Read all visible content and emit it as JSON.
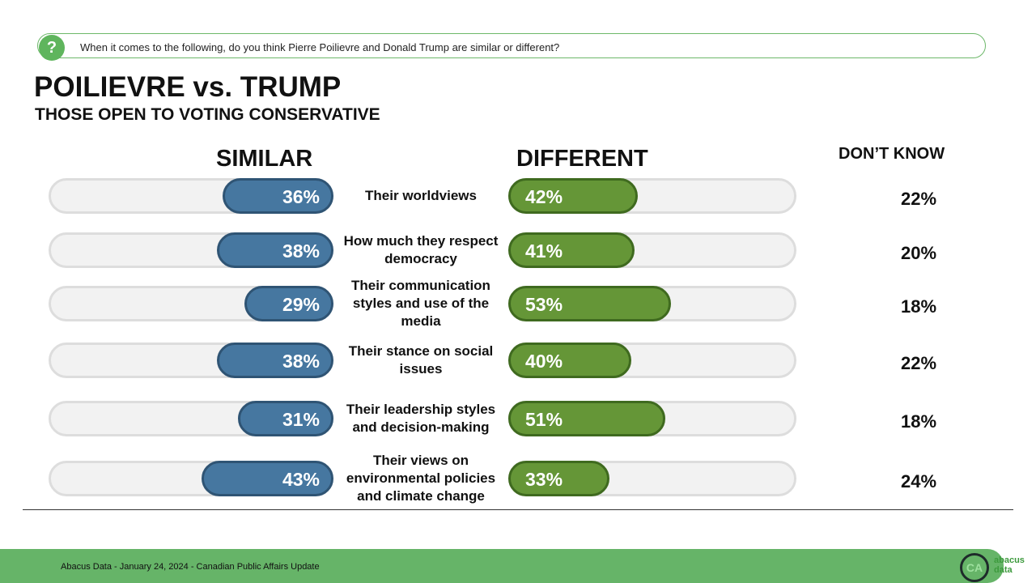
{
  "question": "When it comes to the following, do you think Pierre Poilievre and Donald Trump are similar or different?",
  "title": "POILIEVRE vs. TRUMP",
  "subtitle": "THOSE OPEN TO VOTING CONSERVATIVE",
  "footer": "Abacus Data - January 24, 2024 - Canadian Public Affairs Update",
  "logo": {
    "badge": "CA",
    "brand1": "abacus",
    "brand2": "data"
  },
  "chart_data": {
    "type": "bar",
    "series": [
      {
        "name": "SIMILAR",
        "color": "#4677a0"
      },
      {
        "name": "DIFFERENT",
        "color": "#659637"
      },
      {
        "name": "DON’T KNOW"
      }
    ],
    "categories": [
      "Their worldviews",
      "How much they respect democracy",
      "Their communication styles and use of the media",
      "Their stance on social issues",
      "Their leadership styles and decision-making",
      "Their views on environmental policies and climate change"
    ],
    "similar": [
      36,
      38,
      29,
      38,
      31,
      43
    ],
    "different": [
      42,
      41,
      53,
      40,
      51,
      33
    ],
    "dont_know": [
      22,
      20,
      18,
      22,
      18,
      24
    ],
    "unit": "%"
  }
}
